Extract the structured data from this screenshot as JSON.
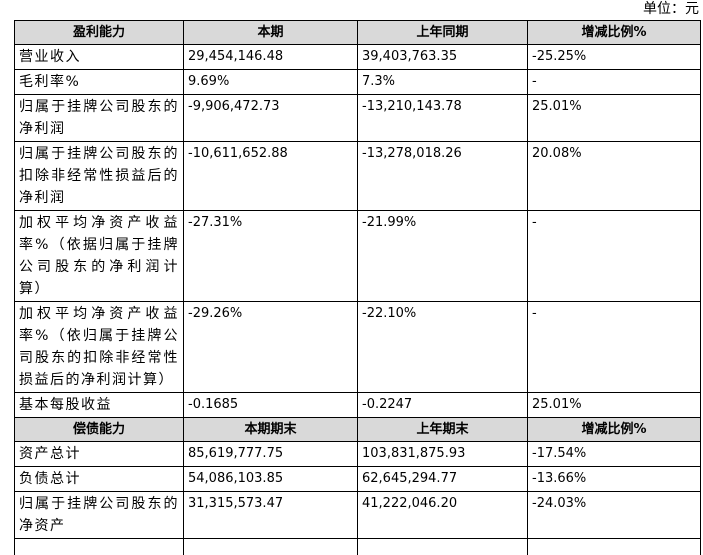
{
  "unit": "单位：元",
  "sections": [
    {
      "header": [
        "盈利能力",
        "本期",
        "上年同期",
        "增减比例%"
      ],
      "rows": [
        [
          "营业收入",
          "29,454,146.48",
          "39,403,763.35",
          "-25.25%"
        ],
        [
          "毛利率%",
          "9.69%",
          "7.3%",
          "-"
        ],
        [
          "归属于挂牌公司股东的净利润",
          "-9,906,472.73",
          "-13,210,143.78",
          "25.01%"
        ],
        [
          "归属于挂牌公司股东的扣除非经常性损益后的净利润",
          "-10,611,652.88",
          "-13,278,018.26",
          "20.08%"
        ],
        [
          "加权平均净资产收益率%（依据归属于挂牌公司股东的净利润计算）",
          "-27.31%",
          "-21.99%",
          "-"
        ],
        [
          "加权平均净资产收益率%（依归属于挂牌公司股东的扣除非经常性损益后的净利润计算）",
          "-29.26%",
          "-22.10%",
          "-"
        ],
        [
          "基本每股收益",
          "-0.1685",
          "-0.2247",
          "25.01%"
        ]
      ]
    },
    {
      "header": [
        "偿债能力",
        "本期期末",
        "上年期末",
        "增减比例%"
      ],
      "rows": [
        [
          "资产总计",
          "85,619,777.75",
          "103,831,875.93",
          "-17.54%"
        ],
        [
          "负债总计",
          "54,086,103.85",
          "62,645,294.77",
          "-13.66%"
        ],
        [
          "归属于挂牌公司股东的净资产",
          "31,315,573.47",
          "41,222,046.20",
          "-24.03%"
        ]
      ]
    }
  ]
}
